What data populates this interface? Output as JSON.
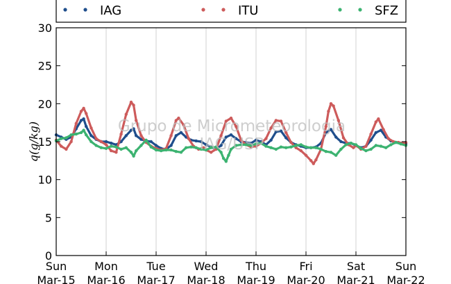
{
  "chart_data": {
    "type": "line",
    "ylabel": "q(g/kg)",
    "ylim": [
      0,
      30
    ],
    "yticks": [
      0,
      5,
      10,
      15,
      20,
      25,
      30
    ],
    "xlim": [
      0,
      7
    ],
    "xticks": [
      {
        "day": "Sun",
        "date": "Mar-15"
      },
      {
        "day": "Mon",
        "date": "Mar-16"
      },
      {
        "day": "Tue",
        "date": "Mar-17"
      },
      {
        "day": "Wed",
        "date": "Mar-18"
      },
      {
        "day": "Thu",
        "date": "Mar-19"
      },
      {
        "day": "Fri",
        "date": "Mar-20"
      },
      {
        "day": "Sat",
        "date": "Mar-21"
      },
      {
        "day": "Sun",
        "date": "Mar-22"
      }
    ],
    "grid": "vertical",
    "legend": "top, above plot, 3 columns",
    "watermark": [
      "Grupo de Micrometeorologia",
      "IAG/USP"
    ],
    "series": [
      {
        "name": "IAG",
        "color": "#1f4e8c",
        "points": [
          [
            0.0,
            15.9
          ],
          [
            0.1,
            15.6
          ],
          [
            0.2,
            15.3
          ],
          [
            0.3,
            15.6
          ],
          [
            0.4,
            16.7
          ],
          [
            0.5,
            17.8
          ],
          [
            0.55,
            18.0
          ],
          [
            0.6,
            17.0
          ],
          [
            0.7,
            15.8
          ],
          [
            0.8,
            15.3
          ],
          [
            0.9,
            15.0
          ],
          [
            1.0,
            15.0
          ],
          [
            1.1,
            14.8
          ],
          [
            1.2,
            14.6
          ],
          [
            1.3,
            15.0
          ],
          [
            1.4,
            15.8
          ],
          [
            1.5,
            16.5
          ],
          [
            1.55,
            16.7
          ],
          [
            1.6,
            15.8
          ],
          [
            1.7,
            15.3
          ],
          [
            1.8,
            15.1
          ],
          [
            1.9,
            15.0
          ],
          [
            2.0,
            14.5
          ],
          [
            2.1,
            14.1
          ],
          [
            2.2,
            14.0
          ],
          [
            2.3,
            14.5
          ],
          [
            2.4,
            15.8
          ],
          [
            2.5,
            16.2
          ],
          [
            2.6,
            15.6
          ],
          [
            2.7,
            15.2
          ],
          [
            2.8,
            15.1
          ],
          [
            2.9,
            15.0
          ],
          [
            3.0,
            14.6
          ],
          [
            3.1,
            14.3
          ],
          [
            3.2,
            14.0
          ],
          [
            3.3,
            14.5
          ],
          [
            3.4,
            15.6
          ],
          [
            3.5,
            15.9
          ],
          [
            3.6,
            15.4
          ],
          [
            3.7,
            15.0
          ],
          [
            3.8,
            14.9
          ],
          [
            3.9,
            14.8
          ],
          [
            4.0,
            15.2
          ],
          [
            4.1,
            15.0
          ],
          [
            4.2,
            14.6
          ],
          [
            4.3,
            15.2
          ],
          [
            4.4,
            16.3
          ],
          [
            4.5,
            16.4
          ],
          [
            4.6,
            15.5
          ],
          [
            4.7,
            14.9
          ],
          [
            4.8,
            14.6
          ],
          [
            4.9,
            14.4
          ],
          [
            5.0,
            14.2
          ],
          [
            5.1,
            14.2
          ],
          [
            5.2,
            14.3
          ],
          [
            5.3,
            14.8
          ],
          [
            5.4,
            16.2
          ],
          [
            5.5,
            16.6
          ],
          [
            5.6,
            15.6
          ],
          [
            5.7,
            15.0
          ],
          [
            5.8,
            14.8
          ],
          [
            5.9,
            14.8
          ],
          [
            6.0,
            14.5
          ],
          [
            6.1,
            14.2
          ],
          [
            6.2,
            14.4
          ],
          [
            6.3,
            15.2
          ],
          [
            6.4,
            16.2
          ],
          [
            6.5,
            16.5
          ],
          [
            6.6,
            15.6
          ],
          [
            6.7,
            15.1
          ],
          [
            6.8,
            14.9
          ],
          [
            6.9,
            14.8
          ],
          [
            7.0,
            14.7
          ]
        ]
      },
      {
        "name": "ITU",
        "color": "#cd5b5b",
        "points": [
          [
            0.0,
            15.2
          ],
          [
            0.1,
            14.4
          ],
          [
            0.2,
            14.0
          ],
          [
            0.3,
            15.0
          ],
          [
            0.4,
            17.4
          ],
          [
            0.5,
            19.0
          ],
          [
            0.55,
            19.4
          ],
          [
            0.6,
            18.7
          ],
          [
            0.7,
            16.8
          ],
          [
            0.8,
            15.4
          ],
          [
            0.9,
            15.0
          ],
          [
            1.0,
            14.6
          ],
          [
            1.1,
            13.8
          ],
          [
            1.2,
            13.6
          ],
          [
            1.3,
            16.0
          ],
          [
            1.4,
            18.6
          ],
          [
            1.5,
            20.2
          ],
          [
            1.55,
            19.8
          ],
          [
            1.6,
            17.8
          ],
          [
            1.7,
            15.8
          ],
          [
            1.8,
            14.9
          ],
          [
            1.9,
            14.4
          ],
          [
            2.0,
            14.1
          ],
          [
            2.1,
            13.9
          ],
          [
            2.2,
            14.1
          ],
          [
            2.3,
            15.8
          ],
          [
            2.4,
            17.8
          ],
          [
            2.45,
            18.1
          ],
          [
            2.55,
            17.2
          ],
          [
            2.65,
            15.4
          ],
          [
            2.75,
            14.4
          ],
          [
            2.85,
            14.0
          ],
          [
            2.95,
            14.2
          ],
          [
            3.0,
            13.9
          ],
          [
            3.1,
            13.6
          ],
          [
            3.2,
            14.0
          ],
          [
            3.3,
            15.8
          ],
          [
            3.4,
            17.7
          ],
          [
            3.5,
            18.1
          ],
          [
            3.6,
            17.0
          ],
          [
            3.7,
            15.2
          ],
          [
            3.8,
            14.6
          ],
          [
            3.9,
            14.3
          ],
          [
            4.0,
            14.4
          ],
          [
            4.1,
            14.8
          ],
          [
            4.2,
            15.4
          ],
          [
            4.3,
            16.8
          ],
          [
            4.4,
            17.8
          ],
          [
            4.5,
            17.7
          ],
          [
            4.6,
            16.2
          ],
          [
            4.7,
            14.9
          ],
          [
            4.8,
            14.2
          ],
          [
            4.9,
            13.8
          ],
          [
            5.0,
            13.2
          ],
          [
            5.1,
            12.5
          ],
          [
            5.15,
            12.1
          ],
          [
            5.2,
            12.6
          ],
          [
            5.3,
            14.0
          ],
          [
            5.4,
            17.0
          ],
          [
            5.45,
            19.0
          ],
          [
            5.5,
            20.0
          ],
          [
            5.55,
            19.7
          ],
          [
            5.65,
            17.8
          ],
          [
            5.75,
            15.5
          ],
          [
            5.85,
            14.6
          ],
          [
            5.95,
            14.2
          ],
          [
            6.0,
            14.5
          ],
          [
            6.1,
            14.0
          ],
          [
            6.2,
            14.4
          ],
          [
            6.3,
            16.0
          ],
          [
            6.4,
            17.6
          ],
          [
            6.45,
            18.0
          ],
          [
            6.55,
            16.6
          ],
          [
            6.65,
            15.4
          ],
          [
            6.75,
            15.0
          ],
          [
            6.85,
            14.9
          ],
          [
            6.95,
            14.8
          ],
          [
            7.0,
            14.9
          ]
        ]
      },
      {
        "name": "SFZ",
        "color": "#3cb371",
        "points": [
          [
            0.0,
            15.1
          ],
          [
            0.1,
            15.4
          ],
          [
            0.2,
            15.5
          ],
          [
            0.3,
            15.9
          ],
          [
            0.4,
            16.0
          ],
          [
            0.5,
            16.2
          ],
          [
            0.55,
            16.5
          ],
          [
            0.6,
            15.9
          ],
          [
            0.7,
            15.0
          ],
          [
            0.8,
            14.5
          ],
          [
            0.9,
            14.2
          ],
          [
            1.0,
            14.1
          ],
          [
            1.1,
            14.4
          ],
          [
            1.2,
            14.3
          ],
          [
            1.3,
            14.0
          ],
          [
            1.4,
            14.2
          ],
          [
            1.5,
            13.6
          ],
          [
            1.55,
            13.1
          ],
          [
            1.6,
            13.8
          ],
          [
            1.7,
            14.5
          ],
          [
            1.8,
            15.2
          ],
          [
            1.9,
            14.3
          ],
          [
            2.0,
            13.9
          ],
          [
            2.1,
            13.8
          ],
          [
            2.2,
            13.9
          ],
          [
            2.3,
            13.9
          ],
          [
            2.4,
            13.7
          ],
          [
            2.5,
            13.6
          ],
          [
            2.6,
            14.2
          ],
          [
            2.7,
            14.3
          ],
          [
            2.8,
            14.2
          ],
          [
            2.9,
            14.0
          ],
          [
            3.0,
            13.9
          ],
          [
            3.1,
            14.2
          ],
          [
            3.2,
            14.3
          ],
          [
            3.3,
            13.6
          ],
          [
            3.35,
            12.8
          ],
          [
            3.4,
            12.4
          ],
          [
            3.45,
            13.2
          ],
          [
            3.5,
            14.0
          ],
          [
            3.6,
            14.5
          ],
          [
            3.7,
            14.6
          ],
          [
            3.8,
            14.6
          ],
          [
            3.9,
            14.5
          ],
          [
            4.0,
            14.7
          ],
          [
            4.1,
            14.8
          ],
          [
            4.2,
            14.4
          ],
          [
            4.3,
            14.2
          ],
          [
            4.4,
            14.0
          ],
          [
            4.5,
            14.3
          ],
          [
            4.6,
            14.2
          ],
          [
            4.7,
            14.3
          ],
          [
            4.8,
            14.5
          ],
          [
            4.9,
            14.6
          ],
          [
            5.0,
            14.3
          ],
          [
            5.1,
            14.2
          ],
          [
            5.2,
            14.2
          ],
          [
            5.3,
            14.0
          ],
          [
            5.4,
            13.7
          ],
          [
            5.5,
            13.6
          ],
          [
            5.6,
            13.2
          ],
          [
            5.7,
            14.0
          ],
          [
            5.8,
            14.6
          ],
          [
            5.9,
            14.8
          ],
          [
            6.0,
            14.6
          ],
          [
            6.1,
            14.1
          ],
          [
            6.2,
            13.8
          ],
          [
            6.3,
            14.0
          ],
          [
            6.4,
            14.5
          ],
          [
            6.5,
            14.4
          ],
          [
            6.6,
            14.2
          ],
          [
            6.7,
            14.6
          ],
          [
            6.8,
            14.9
          ],
          [
            6.9,
            14.7
          ],
          [
            7.0,
            14.5
          ]
        ]
      }
    ]
  }
}
